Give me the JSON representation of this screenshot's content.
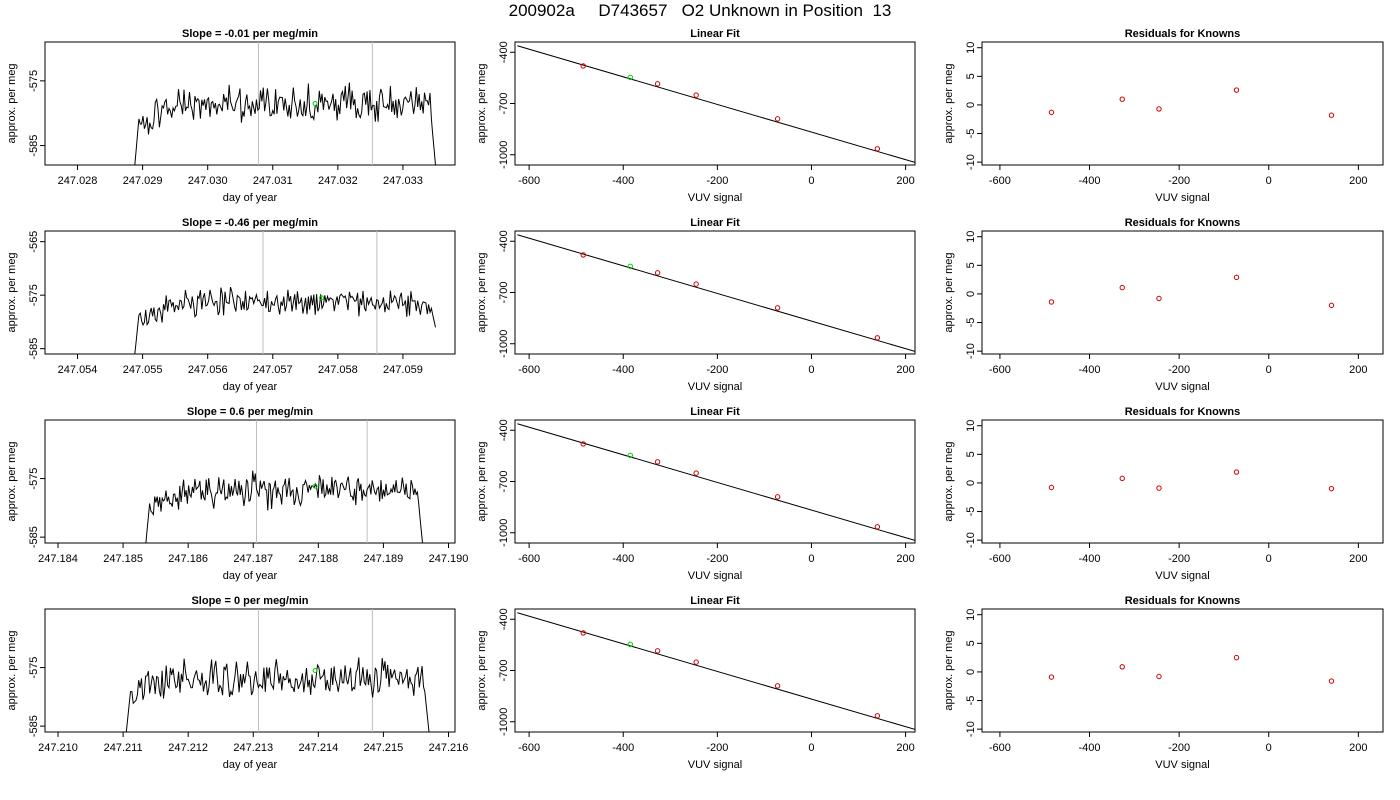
{
  "page": {
    "title": "200902a     D743657   O2 Unknown in Position  13"
  },
  "colors": {
    "trace": "#000000",
    "marker_unknown": "#00cc00",
    "marker_known": "#cc0000",
    "fit_line": "#000000",
    "vline": "#bebebe"
  },
  "chart_data": [
    {
      "type": "line",
      "panel": "trace",
      "title": "Slope =  -0.01  per meg/min",
      "xlabel": "day of year",
      "ylabel": "approx. per meg",
      "xlim": [
        247.0275,
        247.0338
      ],
      "ylim": [
        -588,
        -569
      ],
      "xticks": [
        247.028,
        247.029,
        247.03,
        247.031,
        247.032,
        247.033
      ],
      "xtick_labels": [
        "247.028",
        "247.029",
        "247.030",
        "247.031",
        "247.032",
        "247.033"
      ],
      "yticks": [
        -575,
        -585
      ],
      "ytick_labels": [
        "-575",
        "-585"
      ],
      "vlines": [
        247.03078,
        247.03253
      ],
      "trace_x0": 247.02888,
      "trace_x1": 247.0335,
      "trace_mean": -578.5,
      "trace_amp": 1.6,
      "trace_start": -588,
      "trace_end": -588,
      "unknown_point": [
        247.03165,
        -578.5
      ]
    },
    {
      "type": "scatter",
      "panel": "fit",
      "title": "Linear Fit",
      "xlabel": "VUV signal",
      "ylabel": "approx. per meg",
      "xlim": [
        -630,
        220
      ],
      "ylim": [
        -1060,
        -340
      ],
      "xticks": [
        -600,
        -400,
        -200,
        0,
        200
      ],
      "xtick_labels": [
        "-600",
        "-400",
        "-200",
        "0",
        "200"
      ],
      "yticks": [
        -400,
        -700,
        -1000
      ],
      "ytick_labels": [
        "-400",
        "-700",
        "-1000"
      ],
      "line": {
        "x": [
          -625,
          220
        ],
        "y": [
          -362,
          -1045
        ]
      },
      "known_points": {
        "x": [
          -485,
          -327,
          -245,
          -72,
          140
        ],
        "y": [
          -480,
          -585,
          -651,
          -790,
          -965
        ]
      },
      "unknown_point": [
        -385,
        -547
      ]
    },
    {
      "type": "scatter",
      "panel": "residuals",
      "title": "Residuals for Knowns",
      "xlabel": "VUV signal",
      "ylabel": "approx. per meg",
      "xlim": [
        -640,
        255
      ],
      "ylim": [
        -10.5,
        11
      ],
      "xticks": [
        -600,
        -400,
        -200,
        0,
        200
      ],
      "xtick_labels": [
        "-600",
        "-400",
        "-200",
        "0",
        "200"
      ],
      "yticks": [
        10,
        5,
        0,
        -5,
        -10
      ],
      "ytick_labels": [
        "10",
        "5",
        "0",
        "-5",
        "-10"
      ],
      "points": {
        "x": [
          -485,
          -327,
          -245,
          -72,
          140
        ],
        "y": [
          -1.3,
          1.0,
          -0.7,
          2.6,
          -1.8
        ]
      }
    },
    {
      "type": "line",
      "panel": "trace",
      "title": "Slope =  -0.46  per meg/min",
      "xlabel": "day of year",
      "ylabel": "approx. per meg",
      "xlim": [
        247.0535,
        247.0598
      ],
      "ylim": [
        -586,
        -563
      ],
      "xticks": [
        247.054,
        247.055,
        247.056,
        247.057,
        247.058,
        247.059
      ],
      "xtick_labels": [
        "247.054",
        "247.055",
        "247.056",
        "247.057",
        "247.058",
        "247.059"
      ],
      "yticks": [
        -565,
        -575,
        -585
      ],
      "ytick_labels": [
        "-565",
        "-575",
        "-585"
      ],
      "vlines": [
        247.05685,
        247.0586
      ],
      "trace_x0": 247.05488,
      "trace_x1": 247.0595,
      "trace_mean": -576.3,
      "trace_amp": 1.6,
      "trace_start": -586,
      "trace_end": -581,
      "unknown_point": [
        247.05775,
        -575.5
      ]
    },
    {
      "type": "scatter",
      "panel": "fit",
      "title": "Linear Fit",
      "xlabel": "VUV signal",
      "ylabel": "approx. per meg",
      "xlim": [
        -630,
        220
      ],
      "ylim": [
        -1060,
        -340
      ],
      "xticks": [
        -600,
        -400,
        -200,
        0,
        200
      ],
      "xtick_labels": [
        "-600",
        "-400",
        "-200",
        "0",
        "200"
      ],
      "yticks": [
        -400,
        -700,
        -1000
      ],
      "ytick_labels": [
        "-400",
        "-700",
        "-1000"
      ],
      "line": {
        "x": [
          -625,
          220
        ],
        "y": [
          -362,
          -1045
        ]
      },
      "known_points": {
        "x": [
          -485,
          -327,
          -245,
          -72,
          140
        ],
        "y": [
          -480,
          -585,
          -651,
          -790,
          -965
        ]
      },
      "unknown_point": [
        -385,
        -547
      ]
    },
    {
      "type": "scatter",
      "panel": "residuals",
      "title": "Residuals for Knowns",
      "xlabel": "VUV signal",
      "ylabel": "approx. per meg",
      "xlim": [
        -640,
        255
      ],
      "ylim": [
        -10.5,
        11
      ],
      "xticks": [
        -600,
        -400,
        -200,
        0,
        200
      ],
      "xtick_labels": [
        "-600",
        "-400",
        "-200",
        "0",
        "200"
      ],
      "yticks": [
        10,
        5,
        0,
        -5,
        -10
      ],
      "ytick_labels": [
        "10",
        "5",
        "0",
        "-5",
        "-10"
      ],
      "points": {
        "x": [
          -485,
          -327,
          -245,
          -72,
          140
        ],
        "y": [
          -1.4,
          1.1,
          -0.8,
          2.9,
          -2.0
        ]
      }
    },
    {
      "type": "line",
      "panel": "trace",
      "title": "Slope =  0.6  per meg/min",
      "xlabel": "day of year",
      "ylabel": "approx. per meg",
      "xlim": [
        247.1838,
        247.1901
      ],
      "ylim": [
        -586,
        -565
      ],
      "xticks": [
        247.184,
        247.185,
        247.186,
        247.187,
        247.188,
        247.189,
        247.19
      ],
      "xtick_labels": [
        "247.184",
        "247.185",
        "247.186",
        "247.187",
        "247.188",
        "247.189",
        "247.190"
      ],
      "yticks": [
        -575,
        -585
      ],
      "ytick_labels": [
        "-575",
        "-585"
      ],
      "vlines": [
        247.18705,
        247.18875
      ],
      "trace_x0": 247.18535,
      "trace_x1": 247.1896,
      "trace_mean": -577.0,
      "trace_amp": 1.7,
      "trace_start": -586,
      "trace_end": -586,
      "unknown_point": [
        247.18795,
        -576.3
      ]
    },
    {
      "type": "scatter",
      "panel": "fit",
      "title": "Linear Fit",
      "xlabel": "VUV signal",
      "ylabel": "approx. per meg",
      "xlim": [
        -630,
        220
      ],
      "ylim": [
        -1060,
        -340
      ],
      "xticks": [
        -600,
        -400,
        -200,
        0,
        200
      ],
      "xtick_labels": [
        "-600",
        "-400",
        "-200",
        "0",
        "200"
      ],
      "yticks": [
        -400,
        -700,
        -1000
      ],
      "ytick_labels": [
        "-400",
        "-700",
        "-1000"
      ],
      "line": {
        "x": [
          -625,
          220
        ],
        "y": [
          -362,
          -1045
        ]
      },
      "known_points": {
        "x": [
          -485,
          -327,
          -245,
          -72,
          140
        ],
        "y": [
          -480,
          -585,
          -651,
          -790,
          -965
        ]
      },
      "unknown_point": [
        -385,
        -547
      ]
    },
    {
      "type": "scatter",
      "panel": "residuals",
      "title": "Residuals for Knowns",
      "xlabel": "VUV signal",
      "ylabel": "approx. per meg",
      "xlim": [
        -640,
        255
      ],
      "ylim": [
        -10.5,
        11
      ],
      "xticks": [
        -600,
        -400,
        -200,
        0,
        200
      ],
      "xtick_labels": [
        "-600",
        "-400",
        "-200",
        "0",
        "200"
      ],
      "yticks": [
        10,
        5,
        0,
        -5,
        -10
      ],
      "ytick_labels": [
        "10",
        "5",
        "0",
        "-5",
        "-10"
      ],
      "points": {
        "x": [
          -485,
          -327,
          -245,
          -72,
          140
        ],
        "y": [
          -0.8,
          0.8,
          -0.9,
          1.9,
          -1.0
        ]
      }
    },
    {
      "type": "line",
      "panel": "trace",
      "title": "Slope =  0  per meg/min",
      "xlabel": "day of year",
      "ylabel": "approx. per meg",
      "xlim": [
        247.2098,
        247.2161
      ],
      "ylim": [
        -586,
        -565
      ],
      "xticks": [
        247.21,
        247.211,
        247.212,
        247.213,
        247.214,
        247.215,
        247.216
      ],
      "xtick_labels": [
        "247.210",
        "247.211",
        "247.212",
        "247.213",
        "247.214",
        "247.215",
        "247.216"
      ],
      "yticks": [
        -575,
        -585
      ],
      "ytick_labels": [
        "-575",
        "-585"
      ],
      "vlines": [
        247.21308,
        247.21483
      ],
      "trace_x0": 247.21105,
      "trace_x1": 247.2157,
      "trace_mean": -576.8,
      "trace_amp": 1.9,
      "trace_start": -586,
      "trace_end": -586,
      "unknown_point": [
        247.21395,
        -575.5
      ]
    },
    {
      "type": "scatter",
      "panel": "fit",
      "title": "Linear Fit",
      "xlabel": "VUV signal",
      "ylabel": "approx. per meg",
      "xlim": [
        -630,
        220
      ],
      "ylim": [
        -1060,
        -340
      ],
      "xticks": [
        -600,
        -400,
        -200,
        0,
        200
      ],
      "xtick_labels": [
        "-600",
        "-400",
        "-200",
        "0",
        "200"
      ],
      "yticks": [
        -400,
        -700,
        -1000
      ],
      "ytick_labels": [
        "-400",
        "-700",
        "-1000"
      ],
      "line": {
        "x": [
          -625,
          220
        ],
        "y": [
          -362,
          -1045
        ]
      },
      "known_points": {
        "x": [
          -485,
          -327,
          -245,
          -72,
          140
        ],
        "y": [
          -480,
          -585,
          -651,
          -790,
          -965
        ]
      },
      "unknown_point": [
        -385,
        -547
      ]
    },
    {
      "type": "scatter",
      "panel": "residuals",
      "title": "Residuals for Knowns",
      "xlabel": "VUV signal",
      "ylabel": "approx. per meg",
      "xlim": [
        -640,
        255
      ],
      "ylim": [
        -10.5,
        11
      ],
      "xticks": [
        -600,
        -400,
        -200,
        0,
        200
      ],
      "xtick_labels": [
        "-600",
        "-400",
        "-200",
        "0",
        "200"
      ],
      "yticks": [
        10,
        5,
        0,
        -5,
        -10
      ],
      "ytick_labels": [
        "10",
        "5",
        "0",
        "-5",
        "-10"
      ],
      "points": {
        "x": [
          -485,
          -327,
          -245,
          -72,
          140
        ],
        "y": [
          -0.9,
          0.9,
          -0.8,
          2.5,
          -1.6
        ]
      }
    }
  ]
}
